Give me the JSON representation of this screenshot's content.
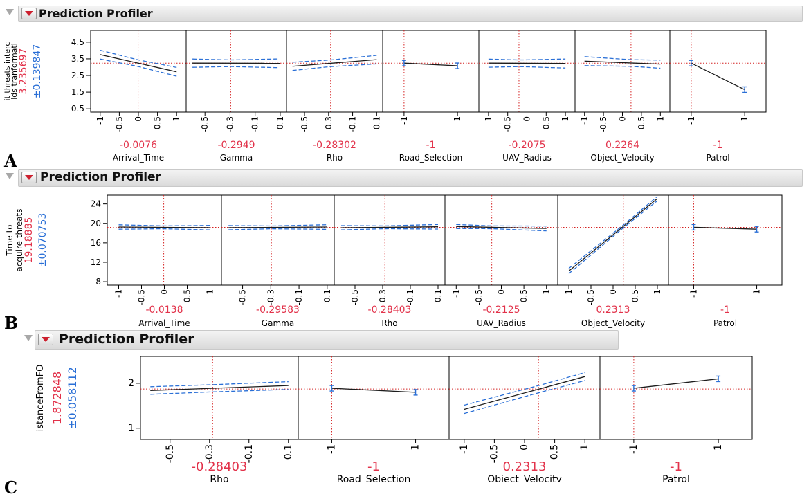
{
  "colors": {
    "current_value": "#e2324a",
    "ci": "#2a6fd6",
    "ref_line": "#d42020",
    "line": "#1c1c1c"
  },
  "headers": [
    {
      "title": "Prediction Profiler",
      "icon": "disclosure-triangle-icon",
      "menu_icon": "red-menu-icon"
    },
    {
      "title": "Prediction Profiler",
      "icon": "disclosure-triangle-icon",
      "menu_icon": "red-menu-icon"
    },
    {
      "title": "Prediction Profiler",
      "icon": "disclosure-triangle-icon",
      "menu_icon": "red-menu-icon"
    }
  ],
  "panel_letters": [
    "A",
    "B",
    "C"
  ],
  "chart_data": [
    {
      "type": "line",
      "title": "Prediction Profiler",
      "response_label": [
        "lds tranformati",
        "it threats interc"
      ],
      "response_value": "3.235697",
      "response_ci": "±0.139847",
      "ylim": [
        0.3,
        5.2
      ],
      "yticks": [
        "0.5",
        "1.5",
        "2.5",
        "3.5",
        "4.5"
      ],
      "y_current": 3.2357,
      "ci_width": 0.14,
      "factors": [
        {
          "name": "Arrival_Time",
          "current": "-0.0076",
          "kind": "cont",
          "xlim": [
            -1.25,
            1.25
          ],
          "ticks": [
            "-1",
            "-0.5",
            "0",
            "0.5",
            "1"
          ],
          "x_current": -0.0076,
          "x": [
            -1,
            1
          ],
          "y": [
            3.75,
            2.72
          ],
          "ci_flare": 0.22
        },
        {
          "name": "Gamma",
          "current": "-0.2949",
          "kind": "cont",
          "xlim": [
            -0.65,
            0.15
          ],
          "ticks": [
            "-0.5",
            "-0.3",
            "-0.1",
            "0.1"
          ],
          "x_current": -0.2949,
          "x": [
            -0.6,
            0.1
          ],
          "y": [
            3.24,
            3.23
          ],
          "ci_flare": 0.2
        },
        {
          "name": "Rho",
          "current": "-0.28302",
          "kind": "cont",
          "xlim": [
            -0.65,
            0.15
          ],
          "ticks": [
            "-0.5",
            "-0.3",
            "-0.1",
            "0.1"
          ],
          "x_current": -0.28302,
          "x": [
            -0.6,
            0.1
          ],
          "y": [
            3.05,
            3.45
          ],
          "ci_flare": 0.18
        },
        {
          "name": "Road_Selection",
          "current": "-1",
          "kind": "cat",
          "xlim": [
            -1.8,
            1.8
          ],
          "ticks": [
            "-1",
            "1"
          ],
          "x_current": -1,
          "x": [
            -1,
            1
          ],
          "y": [
            3.24,
            3.08
          ],
          "ci_flare": 0
        },
        {
          "name": "UAV_Radius",
          "current": "-0.2075",
          "kind": "cont",
          "xlim": [
            -1.25,
            1.25
          ],
          "ticks": [
            "-1",
            "-0.5",
            "0",
            "0.5",
            "1"
          ],
          "x_current": -0.2075,
          "x": [
            -1,
            1
          ],
          "y": [
            3.24,
            3.22
          ],
          "ci_flare": 0.2
        },
        {
          "name": "Object_Velocity",
          "current": "0.2264",
          "kind": "cont",
          "xlim": [
            -1.25,
            1.25
          ],
          "ticks": [
            "-1",
            "-0.5",
            "0",
            "0.5",
            "1"
          ],
          "x_current": 0.2264,
          "x": [
            -1,
            1
          ],
          "y": [
            3.36,
            3.18
          ],
          "ci_flare": 0.2
        },
        {
          "name": "Patrol",
          "current": "-1",
          "kind": "cat",
          "xlim": [
            -1.8,
            1.8
          ],
          "ticks": [
            "-1",
            "1"
          ],
          "x_current": -1,
          "x": [
            -1,
            1
          ],
          "y": [
            3.24,
            1.65
          ],
          "ci_flare": 0
        }
      ]
    },
    {
      "type": "line",
      "title": "Prediction Profiler",
      "response_label": [
        "Time to",
        "acquire threats"
      ],
      "response_value": "19.18885",
      "response_ci": "±0.070753",
      "ylim": [
        7.3,
        25.8
      ],
      "yticks": [
        "8",
        "12",
        "16",
        "20",
        "24"
      ],
      "y_current": 19.19,
      "ci_width": 0.07,
      "factors": [
        {
          "name": "Arrival_Time",
          "current": "-0.0138",
          "kind": "cont",
          "xlim": [
            -1.25,
            1.25
          ],
          "ticks": [
            "-1",
            "-0.5",
            "0",
            "0.5",
            "1"
          ],
          "x_current": -0.0138,
          "x": [
            -1,
            1
          ],
          "y": [
            19.25,
            19.12
          ],
          "ci_flare": 0.15
        },
        {
          "name": "Gamma",
          "current": "-0.29583",
          "kind": "cont",
          "xlim": [
            -0.65,
            0.15
          ],
          "ticks": [
            "-0.5",
            "-0.3",
            "-0.1",
            "0.1"
          ],
          "x_current": -0.29583,
          "x": [
            -0.6,
            0.1
          ],
          "y": [
            19.12,
            19.25
          ],
          "ci_flare": 0.15
        },
        {
          "name": "Rho",
          "current": "-0.28403",
          "kind": "cont",
          "xlim": [
            -0.65,
            0.15
          ],
          "ticks": [
            "-0.5",
            "-0.3",
            "-0.1",
            "0.1"
          ],
          "x_current": -0.28403,
          "x": [
            -0.6,
            0.1
          ],
          "y": [
            19.1,
            19.3
          ],
          "ci_flare": 0.15
        },
        {
          "name": "UAV_Radius",
          "current": "-0.2125",
          "kind": "cont",
          "xlim": [
            -1.25,
            1.25
          ],
          "ticks": [
            "-1",
            "-0.5",
            "0",
            "0.5",
            "1"
          ],
          "x_current": -0.2125,
          "x": [
            -1,
            1
          ],
          "y": [
            19.35,
            18.95
          ],
          "ci_flare": 0.15
        },
        {
          "name": "Object_Velocity",
          "current": "0.2313",
          "kind": "cont",
          "xlim": [
            -1.25,
            1.25
          ],
          "ticks": [
            "-1",
            "-0.5",
            "0",
            "0.5",
            "1"
          ],
          "x_current": 0.2313,
          "x": [
            -1,
            1
          ],
          "y": [
            10.2,
            25.1
          ],
          "ci_flare": 0.18
        },
        {
          "name": "Patrol",
          "current": "-1",
          "kind": "cat",
          "xlim": [
            -1.8,
            1.8
          ],
          "ticks": [
            "-1",
            "1"
          ],
          "x_current": -1,
          "x": [
            -1,
            1
          ],
          "y": [
            19.2,
            18.8
          ],
          "ci_flare": 0
        }
      ]
    },
    {
      "type": "line",
      "title": "Prediction Profiler",
      "response_label": [
        "istanceFromFO"
      ],
      "response_value": "1.872848",
      "response_ci": "±0.058112",
      "ylim": [
        0.75,
        2.6
      ],
      "yticks": [
        "1",
        "2"
      ],
      "y_current": 1.8728,
      "ci_width": 0.058,
      "factors": [
        {
          "name": "Rho",
          "current": "-0.28403",
          "kind": "cont",
          "xlim": [
            -0.65,
            0.15
          ],
          "ticks": [
            "-0.5",
            "-0.3",
            "-0.1",
            "0.1"
          ],
          "x_current": -0.28403,
          "x": [
            -0.6,
            0.1
          ],
          "y": [
            1.84,
            1.95
          ],
          "ci_flare": 0.05
        },
        {
          "name": "Road_Selection",
          "current": "-1",
          "kind": "cat",
          "xlim": [
            -1.8,
            1.8
          ],
          "ticks": [
            "-1",
            "1"
          ],
          "x_current": -1,
          "x": [
            -1,
            1
          ],
          "y": [
            1.89,
            1.8
          ],
          "ci_flare": 0
        },
        {
          "name": "Object_Velocity",
          "current": "0.2313",
          "kind": "cont",
          "xlim": [
            -1.25,
            1.25
          ],
          "ticks": [
            "-1",
            "-0.5",
            "0",
            "0.5",
            "1"
          ],
          "x_current": 0.2313,
          "x": [
            -1,
            1
          ],
          "y": [
            1.42,
            2.15
          ],
          "ci_flare": 0.1
        },
        {
          "name": "Patrol",
          "current": "-1",
          "kind": "cat",
          "xlim": [
            -1.8,
            1.8
          ],
          "ticks": [
            "-1",
            "1"
          ],
          "x_current": -1,
          "x": [
            -1,
            1
          ],
          "y": [
            1.89,
            2.1
          ],
          "ci_flare": 0
        }
      ]
    }
  ]
}
